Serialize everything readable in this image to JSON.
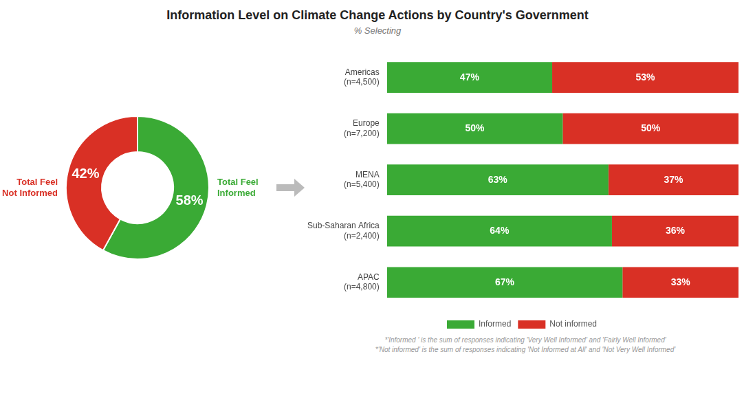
{
  "title": "Information Level on Climate Change Actions by Country's Government",
  "subtitle": "% Selecting",
  "chart_data": [
    {
      "type": "doughnut",
      "categories": [
        "Total Feel\nInformed",
        "Total Feel\nNot Informed"
      ],
      "values": [
        58,
        42
      ],
      "value_labels": [
        "58%",
        "42%"
      ],
      "colors": [
        "#3aaa35",
        "#d93025"
      ],
      "data_labels": true
    },
    {
      "type": "bar",
      "orientation": "horizontal",
      "stacked": true,
      "categories": [
        "Americas\n(n=4,500)",
        "Europe\n(n=7,200)",
        "MENA\n(n=5,400)",
        "Sub-Saharan Africa\n(n=2,400)",
        "APAC\n(n=4,800)"
      ],
      "series": [
        {
          "name": "Informed",
          "color": "#3aaa35",
          "values": [
            47,
            50,
            63,
            64,
            67
          ],
          "value_labels": [
            "47%",
            "50%",
            "63%",
            "64%",
            "67%"
          ]
        },
        {
          "name": "Not informed",
          "color": "#d93025",
          "values": [
            53,
            50,
            37,
            36,
            33
          ],
          "value_labels": [
            "53%",
            "50%",
            "37%",
            "36%",
            "33%"
          ]
        }
      ],
      "xlim": [
        0,
        100
      ],
      "tick_labels": "y",
      "grid": false,
      "legend": "bottom",
      "data_labels": true,
      "annotations": [
        "*'Informed ' is the sum of responses indicating 'Very Well Informed' and 'Fairly Well Informed'",
        "*'Not informed' is the sum of responses indicating 'Not Informed at All' and 'Not Very Well Informed'"
      ]
    }
  ]
}
